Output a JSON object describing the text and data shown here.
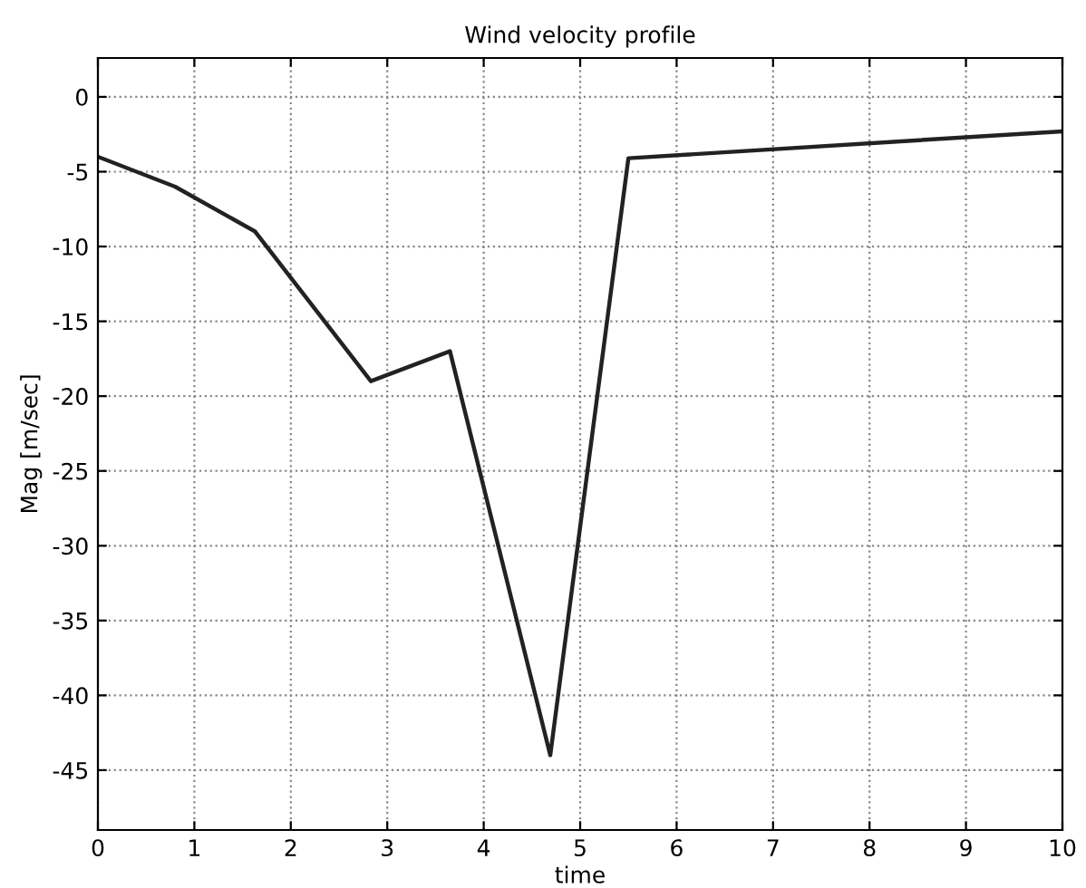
{
  "chart_data": {
    "type": "line",
    "title": "Wind velocity profile",
    "xlabel": "time",
    "ylabel": "Mag [m/sec]",
    "x": [
      0,
      0.8,
      1.63,
      2.83,
      3.65,
      4.69,
      5.5,
      10
    ],
    "series": [
      {
        "color": "#222222",
        "values": [
          -4,
          -6,
          -9,
          -19,
          -17,
          -44,
          -4.1,
          -2.3
        ]
      }
    ],
    "xlim": [
      0,
      10
    ],
    "xticks": [
      0,
      1,
      2,
      3,
      4,
      5,
      6,
      7,
      8,
      9,
      10
    ],
    "ylim": [
      -49,
      2.6
    ],
    "yticks": [
      -45,
      -40,
      -35,
      -30,
      -25,
      -20,
      -15,
      -10,
      -5,
      0
    ],
    "grid": true,
    "marker": "none",
    "line_style": "solid"
  }
}
